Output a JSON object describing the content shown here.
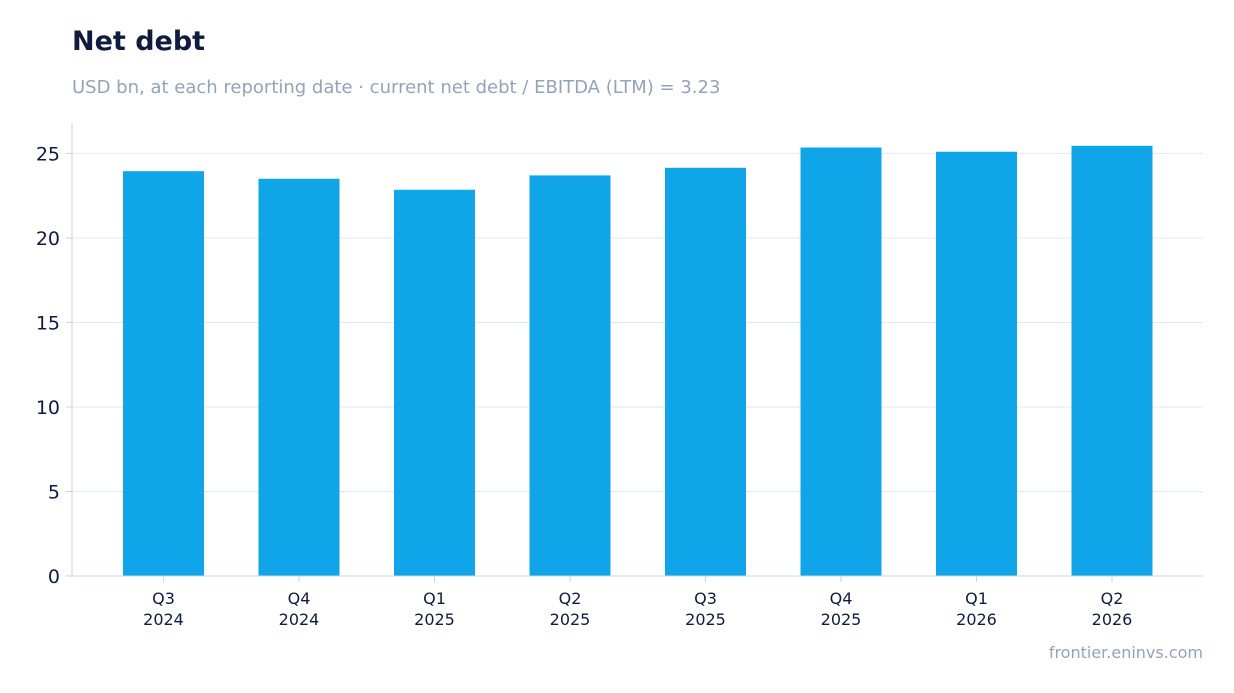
{
  "title": "Net debt",
  "subtitle": "USD bn, at each reporting date · current net debt / EBITDA (LTM) = 3.23",
  "source": "frontier.eninvs.com",
  "colors": {
    "bar": "#10a5e8",
    "grid": "#e2e8f0",
    "axis": "#cbd5e1",
    "text": "#0f1c3f",
    "muted": "#94a3b8"
  },
  "chart_data": {
    "type": "bar",
    "title": "Net debt",
    "subtitle": "USD bn, at each reporting date · current net debt / EBITDA (LTM) = 3.23",
    "xlabel": "",
    "ylabel": "",
    "categories": [
      [
        "Q3",
        "2024"
      ],
      [
        "Q4",
        "2024"
      ],
      [
        "Q1",
        "2025"
      ],
      [
        "Q2",
        "2025"
      ],
      [
        "Q3",
        "2025"
      ],
      [
        "Q4",
        "2025"
      ],
      [
        "Q1",
        "2026"
      ],
      [
        "Q2",
        "2026"
      ]
    ],
    "values": [
      23.95,
      23.5,
      22.85,
      23.7,
      24.15,
      25.35,
      25.1,
      25.45
    ],
    "yticks": [
      0,
      5,
      10,
      15,
      20,
      25
    ],
    "ylim": [
      0,
      26.8
    ],
    "grid": true,
    "legend": "none"
  }
}
